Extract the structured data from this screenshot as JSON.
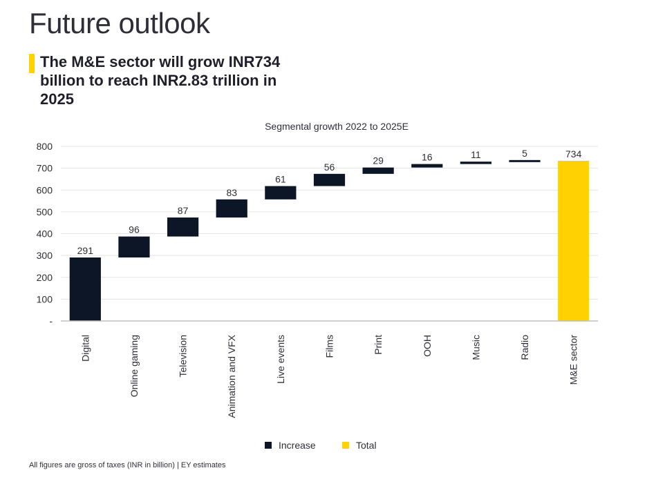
{
  "page": {
    "title": "Future outlook",
    "headline": "The M&E sector will grow INR734 billion to reach INR2.83 trillion in 2025",
    "footnote": "All figures are gross of taxes (INR in billion) | EY estimates"
  },
  "colors": {
    "increase": "#0d1626",
    "total": "#ffd200",
    "accent_bar": "#ffd200",
    "gridline": "#e3e3e3"
  },
  "chart_data": {
    "type": "bar",
    "subtype": "waterfall",
    "title": "Segmental growth 2022 to 2025E",
    "categories": [
      "Digital",
      "Online gaming",
      "Television",
      "Animation and VFX",
      "Live events",
      "Films",
      "Print",
      "OOH",
      "Music",
      "Radio",
      "M&E sector"
    ],
    "values": [
      291,
      96,
      87,
      83,
      61,
      56,
      29,
      16,
      11,
      5,
      734
    ],
    "kinds": [
      "increase",
      "increase",
      "increase",
      "increase",
      "increase",
      "increase",
      "increase",
      "increase",
      "increase",
      "increase",
      "total"
    ],
    "y_ticks": [
      "-",
      "100",
      "200",
      "300",
      "400",
      "500",
      "600",
      "700",
      "800"
    ],
    "ylim": [
      0,
      800
    ],
    "grid": true,
    "legend": {
      "position": "bottom",
      "entries": [
        {
          "label": "Increase",
          "kind": "increase"
        },
        {
          "label": "Total",
          "kind": "total"
        }
      ]
    }
  }
}
